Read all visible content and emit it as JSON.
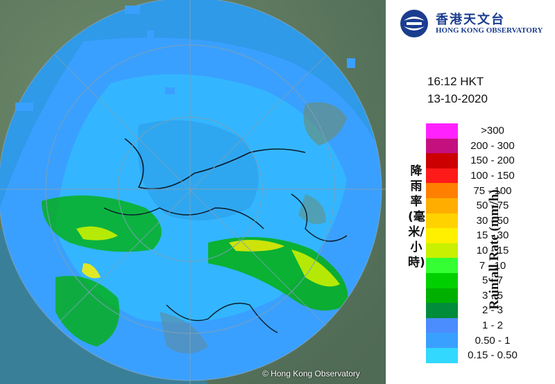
{
  "header": {
    "logo_zh": "香港天文台",
    "logo_en": "HONG KONG OBSERVATORY",
    "time": "16:12 HKT",
    "date": "13-10-2020"
  },
  "legend": {
    "title_zh": "降雨率(毫米/小時)",
    "title_en": "Rainfall Rate (mm/h)",
    "items": [
      {
        "label": ">300",
        "color": "#ff22ff"
      },
      {
        "label": "200 - 300",
        "color": "#c4107f"
      },
      {
        "label": "150 - 200",
        "color": "#cc0000"
      },
      {
        "label": "100 - 150",
        "color": "#ff1a1a"
      },
      {
        "label": "75 - 100",
        "color": "#ff8000"
      },
      {
        "label": "50 - 75",
        "color": "#ffae00"
      },
      {
        "label": "30 - 50",
        "color": "#ffd200"
      },
      {
        "label": "15 - 30",
        "color": "#fff000"
      },
      {
        "label": "10 - 15",
        "color": "#c8f000"
      },
      {
        "label": "7 - 10",
        "color": "#33ff33"
      },
      {
        "label": "5 - 7",
        "color": "#00d000"
      },
      {
        "label": "3 - 5",
        "color": "#00b000"
      },
      {
        "label": "2 - 3",
        "color": "#008c3a"
      },
      {
        "label": "1 - 2",
        "color": "#4b8cff"
      },
      {
        "label": "0.50 - 1",
        "color": "#3aa0ff"
      },
      {
        "label": "0.15 - 0.50",
        "color": "#33d8ff"
      }
    ]
  },
  "map": {
    "copyright": "© Hong Kong Observatory"
  }
}
